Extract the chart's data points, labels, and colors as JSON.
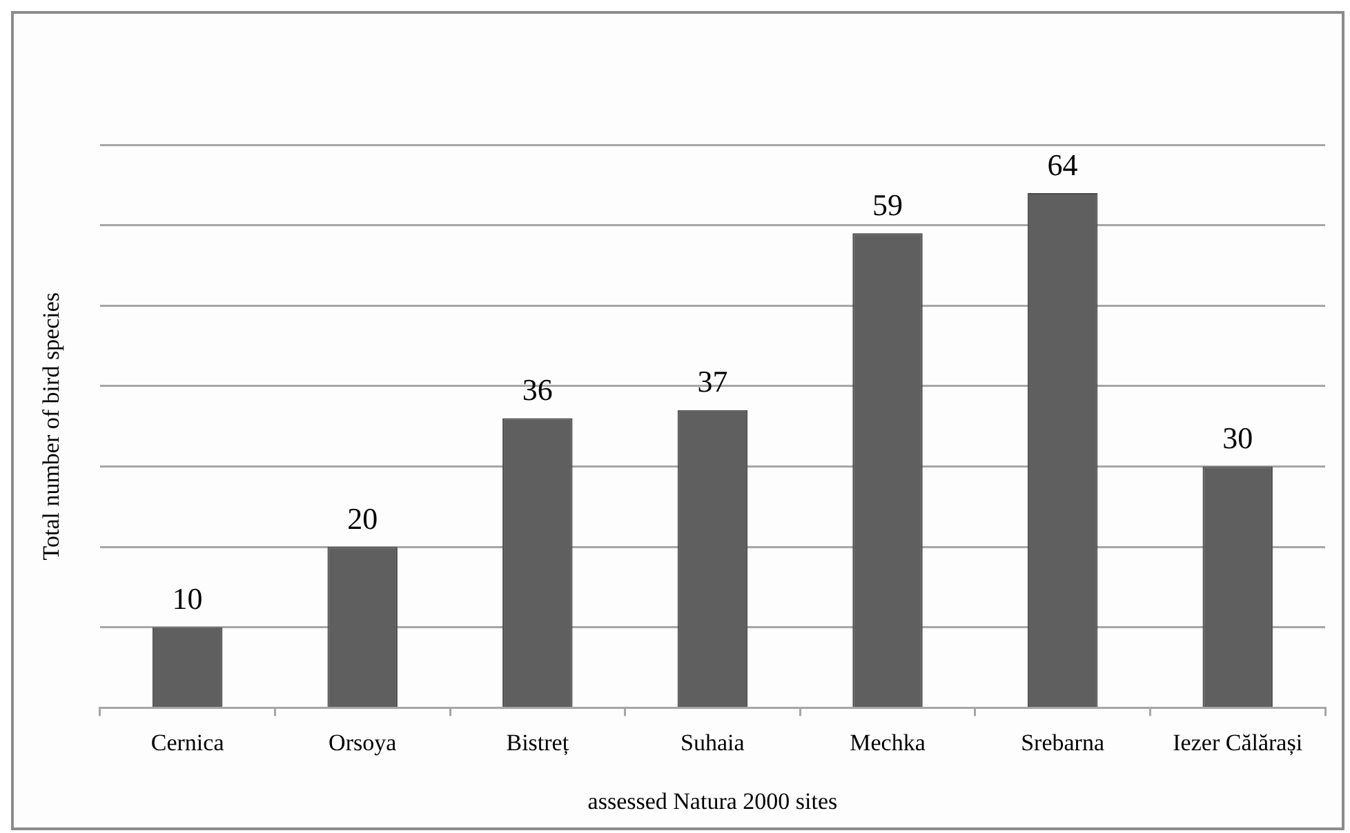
{
  "chart_data": {
    "type": "bar",
    "xlabel": "assessed Natura 2000 sites",
    "ylabel": "Total number of bird species",
    "categories": [
      "Cernica",
      "Orsoya",
      "Bistreț",
      "Suhaia",
      "Mechka",
      "Srebarna",
      "Iezer Călărași"
    ],
    "values": [
      10,
      20,
      36,
      37,
      59,
      64,
      30
    ],
    "color": "#5f5f5f",
    "ylim": [
      0,
      70
    ],
    "yticks": [
      {
        "value": 0,
        "label": null
      },
      {
        "value": 10,
        "label": null
      },
      {
        "value": 20,
        "label": null
      },
      {
        "value": 30,
        "label": null
      },
      {
        "value": 40,
        "label": null
      },
      {
        "value": 50,
        "label": null
      },
      {
        "value": 60,
        "label": null
      },
      {
        "value": 70,
        "label": null
      }
    ],
    "tick_labels": "x",
    "grid": "y",
    "data_labels": true,
    "legend": false
  }
}
